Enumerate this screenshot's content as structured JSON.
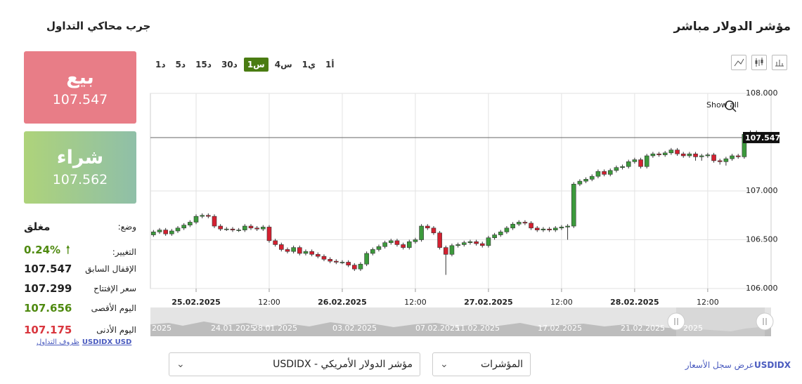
{
  "header": {
    "title": "مؤشر الدولار مباشر",
    "simulator": "جرب محاكي التداول"
  },
  "trade": {
    "sell_label": "بيع",
    "sell_price": "107.547",
    "buy_label": "شراء",
    "buy_price": "107.562"
  },
  "info": [
    {
      "label": "وضع:",
      "value": "مغلق",
      "color": "#222222"
    },
    {
      "label": "التغيير:",
      "value": "0.24%",
      "color": "#4f8a10"
    },
    {
      "label": "الإقفال السابق",
      "value": "107.547",
      "color": "#222222"
    },
    {
      "label": "سعر الإفتتاح",
      "value": "107.299",
      "color": "#222222"
    },
    {
      "label": "اليوم الأقصى",
      "value": "107.656",
      "color": "#4f8a10"
    },
    {
      "label": "اليوم الأدنى",
      "value": "107.175",
      "color": "#d9363e"
    }
  ],
  "conditions": {
    "text": "ظروف التداول",
    "symbol": "USDIDX USD"
  },
  "timeframes": [
    {
      "label": "1د",
      "active": false
    },
    {
      "label": "5د",
      "active": false
    },
    {
      "label": "15د",
      "active": false
    },
    {
      "label": "30د",
      "active": false
    },
    {
      "label": "1س",
      "active": true
    },
    {
      "label": "4س",
      "active": false
    },
    {
      "label": "1ي",
      "active": false
    },
    {
      "label": "1أ",
      "active": false
    }
  ],
  "show_all": "Show all",
  "chart_data": {
    "type": "candlestick",
    "up_color": "#3c9a3c",
    "down_color": "#d42030",
    "xlim": [
      -0.5,
      101.4
    ],
    "ylim": [
      106,
      108
    ],
    "yticks": [
      {
        "value": 106,
        "label": "106.000"
      },
      {
        "value": 106.5,
        "label": "106.500"
      },
      {
        "value": 107,
        "label": "107.000"
      },
      {
        "value": 108,
        "label": "108.000"
      }
    ],
    "xticks": [
      {
        "value": 7,
        "label": "25.02.2025"
      },
      {
        "value": 19,
        "label": "12:00"
      },
      {
        "value": 31,
        "label": "26.02.2025"
      },
      {
        "value": 43,
        "label": "12:00"
      },
      {
        "value": 55,
        "label": "27.02.2025"
      },
      {
        "value": 67,
        "label": "12:00"
      },
      {
        "value": 79,
        "label": "28.02.2025"
      },
      {
        "value": 91,
        "label": "12:00"
      }
    ],
    "grid": true,
    "open": [
      106.55,
      106.58,
      106.6,
      106.56,
      106.59,
      106.62,
      106.65,
      106.68,
      106.74,
      106.75,
      106.74,
      106.64,
      106.61,
      106.61,
      106.6,
      106.6,
      106.64,
      106.62,
      106.61,
      106.63,
      106.49,
      106.45,
      106.4,
      106.38,
      106.42,
      106.36,
      106.38,
      106.35,
      106.33,
      106.3,
      106.28,
      106.27,
      106.27,
      106.24,
      106.2,
      106.25,
      106.36,
      106.4,
      106.43,
      106.47,
      106.49,
      106.45,
      106.42,
      106.48,
      106.5,
      106.64,
      106.62,
      106.57,
      106.42,
      106.35,
      106.44,
      106.45,
      106.47,
      106.48,
      106.46,
      106.44,
      106.52,
      106.55,
      106.58,
      106.62,
      106.66,
      106.68,
      106.67,
      106.62,
      106.6,
      106.61,
      106.6,
      106.62,
      106.63,
      106.64,
      107.07,
      107.1,
      107.12,
      107.15,
      107.2,
      107.17,
      107.21,
      107.24,
      107.25,
      107.3,
      107.32,
      107.25,
      107.36,
      107.38,
      107.37,
      107.39,
      107.42,
      107.38,
      107.36,
      107.38,
      107.35,
      107.36,
      107.37,
      107.31,
      107.3,
      107.33,
      107.36,
      107.35,
      107.58,
      107.6
    ],
    "high": [
      106.6,
      106.62,
      106.62,
      106.61,
      106.64,
      106.67,
      106.7,
      106.76,
      106.77,
      106.77,
      106.76,
      106.66,
      106.63,
      106.63,
      106.62,
      106.66,
      106.66,
      106.64,
      106.65,
      106.65,
      106.51,
      106.47,
      106.42,
      106.44,
      106.44,
      106.4,
      106.4,
      106.37,
      106.35,
      106.32,
      106.3,
      106.29,
      106.29,
      106.26,
      106.27,
      106.38,
      106.42,
      106.45,
      106.49,
      106.51,
      106.51,
      106.47,
      106.5,
      106.52,
      106.66,
      106.66,
      106.64,
      106.59,
      106.44,
      106.46,
      106.47,
      106.49,
      106.5,
      106.5,
      106.48,
      106.54,
      106.57,
      106.6,
      106.64,
      106.68,
      106.7,
      106.7,
      106.69,
      106.64,
      106.63,
      106.63,
      106.64,
      106.65,
      106.66,
      107.09,
      107.12,
      107.14,
      107.17,
      107.22,
      107.22,
      107.23,
      107.26,
      107.27,
      107.32,
      107.34,
      107.34,
      107.38,
      107.4,
      107.4,
      107.41,
      107.44,
      107.44,
      107.4,
      107.4,
      107.4,
      107.38,
      107.39,
      107.39,
      107.33,
      107.35,
      107.38,
      107.38,
      107.6,
      107.62,
      107.62
    ],
    "low": [
      106.53,
      106.56,
      106.54,
      106.54,
      106.57,
      106.6,
      106.63,
      106.66,
      106.72,
      106.72,
      106.62,
      106.59,
      106.59,
      106.58,
      106.58,
      106.58,
      106.6,
      106.59,
      106.59,
      106.47,
      106.43,
      106.38,
      106.36,
      106.36,
      106.34,
      106.34,
      106.33,
      106.31,
      106.28,
      106.26,
      106.25,
      106.25,
      106.22,
      106.18,
      106.18,
      106.23,
      106.34,
      106.38,
      106.41,
      106.45,
      106.43,
      106.4,
      106.4,
      106.46,
      106.48,
      106.6,
      106.55,
      106.4,
      106.14,
      106.33,
      106.42,
      106.43,
      106.45,
      106.44,
      106.42,
      106.42,
      106.5,
      106.53,
      106.56,
      106.6,
      106.64,
      106.65,
      106.6,
      106.58,
      106.58,
      106.58,
      106.58,
      106.6,
      106.5,
      106.62,
      107.05,
      107.08,
      107.1,
      107.13,
      107.15,
      107.15,
      107.19,
      107.22,
      107.23,
      107.28,
      107.23,
      107.23,
      107.34,
      107.35,
      107.35,
      107.37,
      107.36,
      107.34,
      107.34,
      107.31,
      107.31,
      107.34,
      107.29,
      107.27,
      107.26,
      107.31,
      107.33,
      107.33,
      107.56,
      107.53
    ],
    "close": [
      106.58,
      106.6,
      106.56,
      106.59,
      106.62,
      106.65,
      106.68,
      106.74,
      106.75,
      106.74,
      106.64,
      106.61,
      106.61,
      106.6,
      106.6,
      106.64,
      106.62,
      106.61,
      106.63,
      106.49,
      106.45,
      106.4,
      106.38,
      106.42,
      106.36,
      106.38,
      106.35,
      106.33,
      106.3,
      106.28,
      106.27,
      106.27,
      106.24,
      106.2,
      106.25,
      106.36,
      106.4,
      106.43,
      106.47,
      106.49,
      106.45,
      106.42,
      106.48,
      106.5,
      106.64,
      106.62,
      106.57,
      106.42,
      106.35,
      106.44,
      106.45,
      106.47,
      106.48,
      106.46,
      106.44,
      106.52,
      106.55,
      106.58,
      106.62,
      106.66,
      106.68,
      106.67,
      106.62,
      106.6,
      106.61,
      106.6,
      106.62,
      106.63,
      106.64,
      107.07,
      107.1,
      107.12,
      107.15,
      107.2,
      107.17,
      107.21,
      107.24,
      107.25,
      107.3,
      107.32,
      107.25,
      107.36,
      107.38,
      107.37,
      107.39,
      107.42,
      107.38,
      107.36,
      107.38,
      107.35,
      107.36,
      107.37,
      107.31,
      107.3,
      107.33,
      107.36,
      107.35,
      107.58,
      107.6,
      107.547
    ]
  },
  "navigator_labels": [
    "2025",
    "24.01.2025",
    "28.01.2025",
    "03.02.2025",
    "07.02.2025",
    "11.02.2025",
    "17.02.2025",
    "21.02.2025",
    "2025"
  ],
  "footer": {
    "instrument": "USDIDX - مؤشر الدولار الأمريكي",
    "category": "المؤشرات",
    "history_symbol": "USDIDX",
    "history_text": "عرض سجل الأسعار"
  }
}
